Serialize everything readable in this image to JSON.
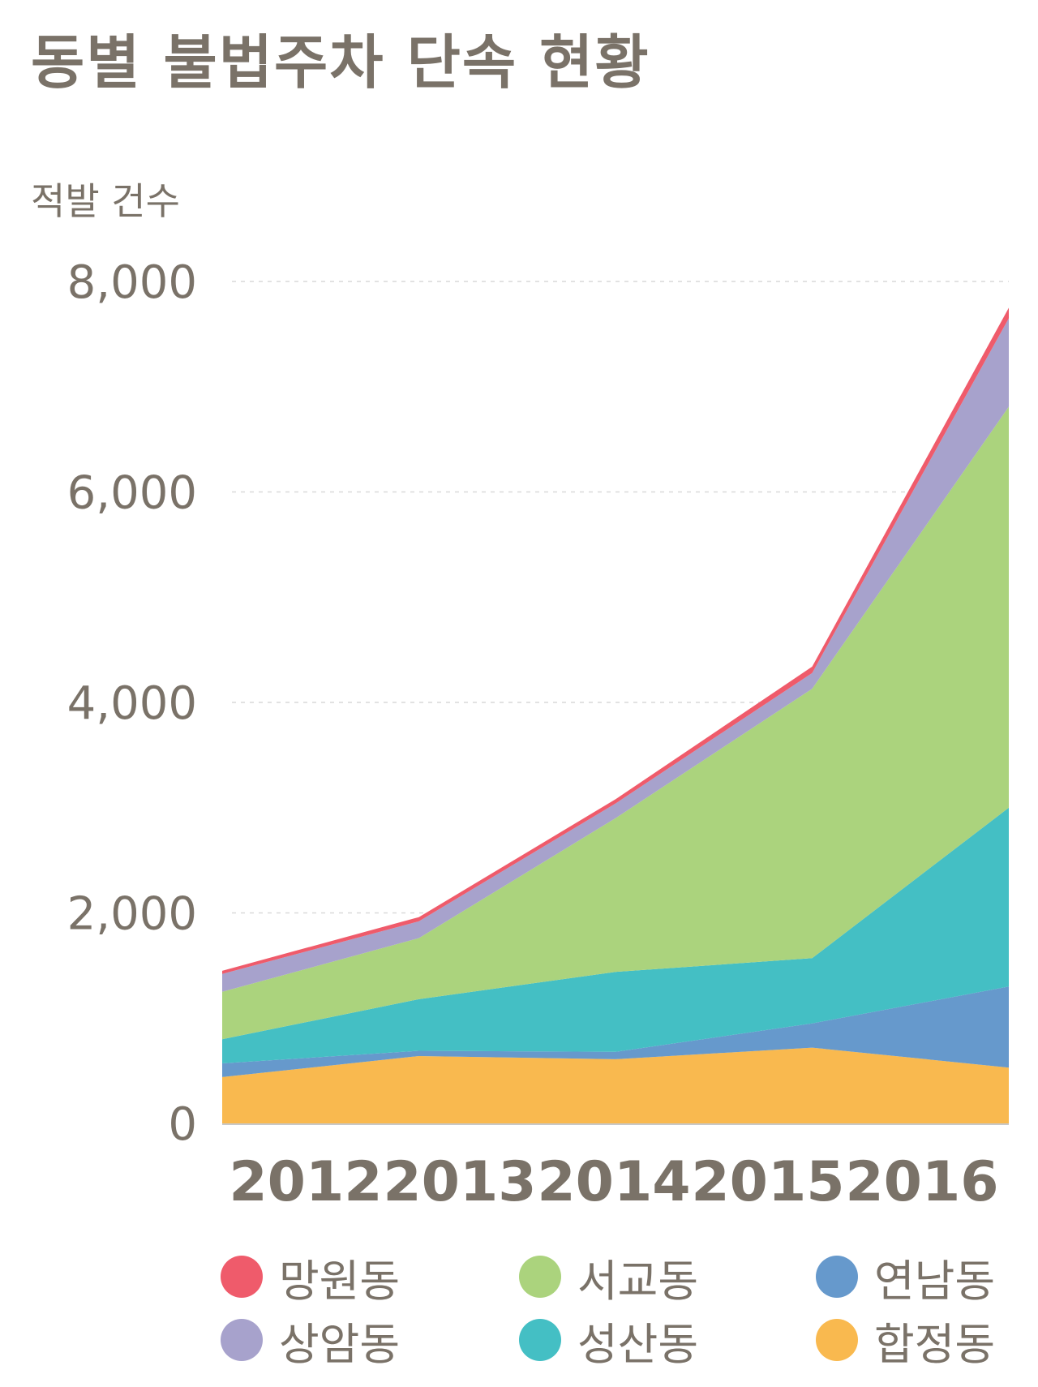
{
  "title": "동별 불법주차 단속 현황",
  "chart_data": {
    "type": "area",
    "stacked": true,
    "title": "동별 불법주차 단속 현황",
    "ylabel": "적발 건수",
    "xlabel": "",
    "x": [
      "2012",
      "2013",
      "2014",
      "2015",
      "2016"
    ],
    "ylim": [
      0,
      8000
    ],
    "yticks": [
      0,
      2000,
      4000,
      6000,
      8000
    ],
    "ytick_labels": [
      "0",
      "2,000",
      "4,000",
      "6,000",
      "8,000"
    ],
    "grid": "horizontal dashed",
    "legend_position": "bottom",
    "series": [
      {
        "name": "합정동",
        "color": "#f9b94f",
        "values": [
          440,
          640,
          610,
          720,
          530
        ]
      },
      {
        "name": "연남동",
        "color": "#6699cc",
        "values": [
          130,
          50,
          70,
          230,
          770
        ]
      },
      {
        "name": "성산동",
        "color": "#44bfc4",
        "values": [
          230,
          490,
          760,
          620,
          1700
        ]
      },
      {
        "name": "서교동",
        "color": "#abd37d",
        "values": [
          450,
          580,
          1460,
          2560,
          3810
        ]
      },
      {
        "name": "상암동",
        "color": "#a7a2cc",
        "values": [
          170,
          160,
          140,
          150,
          840
        ]
      },
      {
        "name": "망원동",
        "color": "#ef5b6b",
        "values": [
          30,
          40,
          40,
          60,
          100
        ]
      }
    ]
  },
  "legend": [
    {
      "name": "망원동",
      "color": "#ef5b6b"
    },
    {
      "name": "서교동",
      "color": "#abd37d"
    },
    {
      "name": "연남동",
      "color": "#6699cc"
    },
    {
      "name": "상암동",
      "color": "#a7a2cc"
    },
    {
      "name": "성산동",
      "color": "#44bfc4"
    },
    {
      "name": "합정동",
      "color": "#f9b94f"
    }
  ]
}
